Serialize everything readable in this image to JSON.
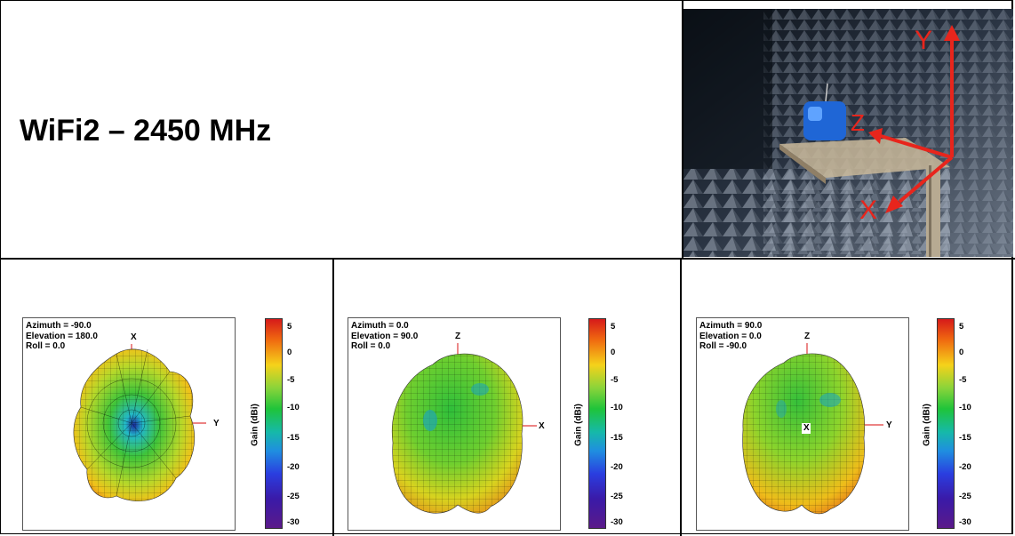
{
  "title": "WiFi2 – 2450 MHz",
  "axes_photo": {
    "y": "Y",
    "z": "Z",
    "x": "X"
  },
  "colorbar": {
    "label": "Gain (dBi)",
    "ticks": [
      "5",
      "0",
      "-5",
      "-10",
      "-15",
      "-20",
      "-25",
      "-30"
    ]
  },
  "panels": [
    {
      "azimuth": "Azimuth = -90.0",
      "elevation": "Elevation = 180.0",
      "roll": "Roll = 0.0",
      "top_axis": "X",
      "side_axis": "Y"
    },
    {
      "azimuth": "Azimuth = 0.0",
      "elevation": "Elevation = 90.0",
      "roll": "Roll = 0.0",
      "top_axis": "Z",
      "side_axis": "X"
    },
    {
      "azimuth": "Azimuth = 90.0",
      "elevation": "Elevation = 0.0",
      "roll": "Roll = -90.0",
      "top_axis": "Z",
      "side_axis": "Y",
      "center_axis": "X"
    }
  ]
}
